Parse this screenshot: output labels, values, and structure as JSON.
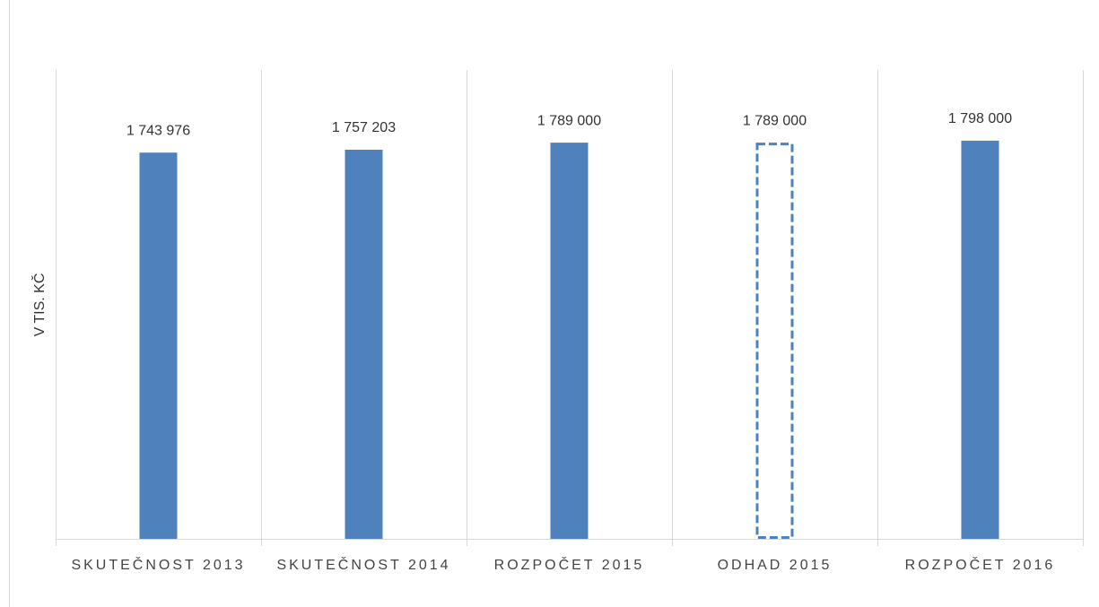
{
  "chart_data": {
    "type": "bar",
    "y_label": "V TIS. KČ",
    "categories": [
      "SKUTEČNOST 2013",
      "SKUTEČNOST 2014",
      "ROZPOČET 2015",
      "ODHAD 2015",
      "ROZPOČET 2016"
    ],
    "values": [
      1743976,
      1757203,
      1789000,
      1789000,
      1798000
    ],
    "value_labels": [
      "1 743 976",
      "1 757 203",
      "1 789 000",
      "1 789 000",
      "1 798 000"
    ],
    "bar_styles": [
      "solid",
      "solid",
      "solid",
      "dashed",
      "solid"
    ],
    "color": "#4f81bd",
    "ylim": [
      0,
      2000000
    ],
    "grid": true
  }
}
